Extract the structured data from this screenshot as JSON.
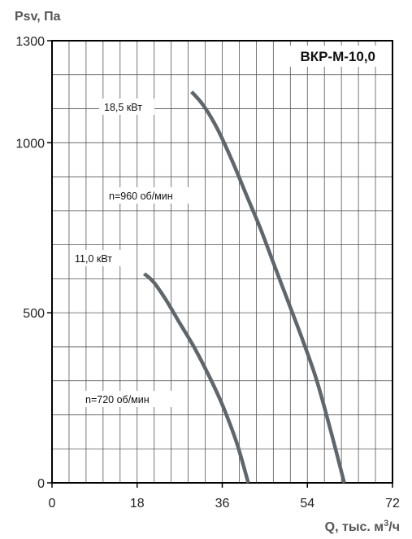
{
  "chart_data": {
    "type": "line",
    "title": "ВКР-М-10,0",
    "ylabel": "Psv, Па",
    "xlabel_main": "Q, тыс. м",
    "xlabel_sup": "3",
    "xlabel_tail": "/ч",
    "xlim": [
      0,
      72
    ],
    "ylim": [
      0,
      1300
    ],
    "x_ticks": [
      0,
      18,
      36,
      54,
      72
    ],
    "y_ticks": [
      0,
      500,
      1000,
      1300
    ],
    "grid": true,
    "series": [
      {
        "power": "18,5 кВт",
        "speed": "n=960 об/мин",
        "color": "#5f676c",
        "points": [
          [
            29.5,
            1150
          ],
          [
            32,
            1110
          ],
          [
            35,
            1040
          ],
          [
            38,
            950
          ],
          [
            41,
            850
          ],
          [
            44,
            750
          ],
          [
            47,
            640
          ],
          [
            50,
            530
          ],
          [
            53,
            420
          ],
          [
            56,
            300
          ],
          [
            59,
            150
          ],
          [
            61.8,
            0
          ]
        ]
      },
      {
        "power": "11,0 кВт",
        "speed": "n=720 об/мин",
        "color": "#5f676c",
        "points": [
          [
            19.5,
            615
          ],
          [
            21.5,
            590
          ],
          [
            24,
            540
          ],
          [
            27,
            470
          ],
          [
            30,
            400
          ],
          [
            33,
            320
          ],
          [
            36,
            230
          ],
          [
            39,
            120
          ],
          [
            41.5,
            0
          ]
        ]
      }
    ]
  }
}
